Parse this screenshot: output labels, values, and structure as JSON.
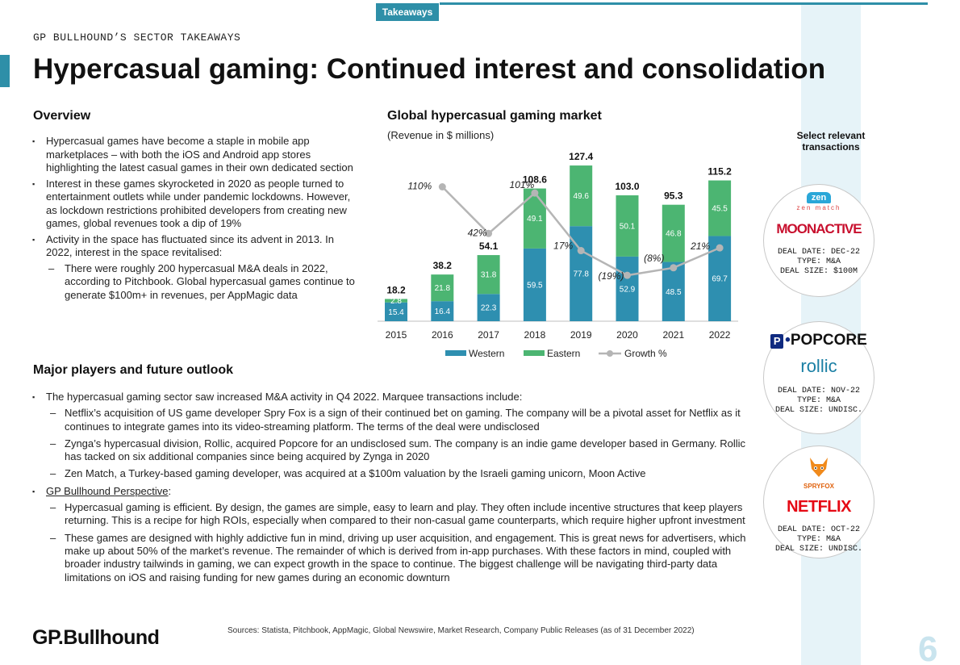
{
  "header": {
    "tab_label": "Takeaways",
    "kicker": "GP BULLHOUND’S SECTOR TAKEAWAYS",
    "title": "Hypercasual gaming: Continued interest and consolidation"
  },
  "overview": {
    "heading": "Overview",
    "bullets": [
      "Hypercasual games have become a staple in mobile app marketplaces – with both the iOS and Android app stores highlighting the latest casual games in their own dedicated section",
      "Interest in these games skyrocketed in 2020 as people turned to entertainment outlets while under pandemic lockdowns. However, as lockdown restrictions prohibited developers from creating new games, global revenues took a dip of 19%",
      "Activity in the space has fluctuated since its advent in 2013. In 2022, interest in the space revitalised:"
    ],
    "sub_bullet": "There were roughly 200 hypercasual M&A deals in 2022, according to Pitchbook. Global hypercasual games continue to generate $100m+ in revenues, per AppMagic data"
  },
  "players": {
    "heading": "Major players and future outlook",
    "intro": "The hypercasual gaming sector saw increased M&A activity in Q4 2022. Marquee transactions include:",
    "deals": [
      "Netflix’s acquisition of US game developer Spry Fox is a sign of their continued bet on gaming. The company will be a pivotal asset for Netflix as it continues to integrate games into its video-streaming platform. The terms of the deal were undisclosed",
      "Zynga’s hypercasual division, Rollic, acquired Popcore for an undisclosed sum. The company is an indie game developer based in Germany. Rollic has tacked on six additional companies since being acquired by Zynga in 2020",
      "Zen Match, a Turkey-based gaming developer, was acquired at a $100m valuation by the Israeli gaming unicorn, Moon Active"
    ],
    "perspective_label": "GP Bullhound Perspective",
    "perspective_colon": ":",
    "perspective": [
      "Hypercasual gaming is efficient. By design, the games are simple, easy to learn and play. They often include incentive structures that keep players returning. This is a recipe for high ROIs, especially when compared to their non-casual game counterparts, which require higher upfront investment",
      "These games are designed with highly addictive fun in mind, driving up user acquisition, and engagement. This is great news for advertisers, which make up about 50% of the market’s revenue. The remainder of which is derived from in-app purchases. With these factors in mind, coupled with broader industry tailwinds in gaming, we can expect growth in the space to continue. The biggest challenge will be navigating third-party data limitations on iOS and raising funding for new games during an economic downturn"
    ]
  },
  "chart_data": {
    "type": "bar",
    "stacked": true,
    "title": "Global hypercasual gaming market",
    "subtitle": "(Revenue in $ millions)",
    "categories": [
      "2015",
      "2016",
      "2017",
      "2018",
      "2019",
      "2020",
      "2021",
      "2022"
    ],
    "series": [
      {
        "name": "Western",
        "color": "#2e8fb0",
        "values": [
          15.4,
          16.4,
          22.3,
          59.5,
          77.8,
          52.9,
          48.5,
          69.7
        ]
      },
      {
        "name": "Eastern",
        "color": "#4cb572",
        "values": [
          2.8,
          21.8,
          31.8,
          49.1,
          49.6,
          50.1,
          46.8,
          45.5
        ]
      }
    ],
    "totals": [
      "18.2",
      "38.2",
      "54.1",
      "108.6",
      "127.4",
      "103.0",
      "95.3",
      "115.2"
    ],
    "growth": {
      "name": "Growth %",
      "color": "#b5b5b5",
      "values": [
        110,
        42,
        101,
        17,
        -19,
        -8,
        21
      ],
      "labels": [
        "110%",
        "42%",
        "101%",
        "17%",
        "(19%)",
        "(8%)",
        "21%"
      ]
    },
    "ylim": [
      0,
      140
    ],
    "legend": "bottom"
  },
  "transactions": {
    "title": "Select relevant transactions",
    "deals": [
      {
        "target": "zen match",
        "acquirer": "MOONACTIVE",
        "date": "DEAL DATE: DEC-22",
        "type": "TYPE: M&A",
        "size": "DEAL SIZE: $100M"
      },
      {
        "target": "POPCORE",
        "acquirer": "rollic",
        "date": "DEAL DATE: NOV-22",
        "type": "TYPE: M&A",
        "size": "DEAL SIZE: UNDISC."
      },
      {
        "target": "SPRYFOX",
        "acquirer": "NETFLIX",
        "date": "DEAL DATE: OCT-22",
        "type": "TYPE: M&A",
        "size": "DEAL SIZE: UNDISC."
      }
    ]
  },
  "footer": {
    "brand": "GP.Bullhound",
    "sources": "Sources: Statista, Pitchbook, AppMagic, Global Newswire, Market Research, Company Public Releases (as of 31 December 2022)",
    "page": "6"
  }
}
